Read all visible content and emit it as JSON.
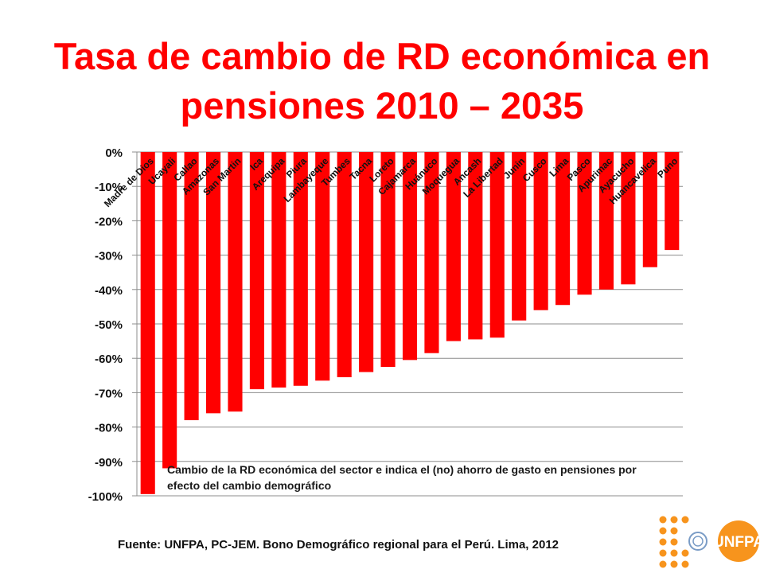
{
  "title_line1": "Tasa de cambio de RD económica en",
  "title_line2": "pensiones 2010 – 2035",
  "note": "Cambio de la RD económica del sector e indica el (no) ahorro de gasto en pensiones por efecto del cambio demográfico",
  "source": "Fuente: UNFPA, PC-JEM.  Bono Demográfico regional para el Perú. Lima, 2012",
  "logo_text": "UNFPA",
  "colors": {
    "bar": "#ff0000",
    "title": "#ff0000",
    "logo_orange": "#f7941d",
    "logo_globe": "#7a9cc6"
  },
  "chart_data": {
    "type": "bar",
    "categories": [
      "Madre de Dios",
      "Ucayali",
      "Callao",
      "Amazonas",
      "San Martin",
      "Ica",
      "Arequipa",
      "Piura",
      "Lambayeque",
      "Tumbes",
      "Tacna",
      "Loreto",
      "Cajamarca",
      "Huánuco",
      "Moquegua",
      "Ancash",
      "La Libertad",
      "Junin",
      "Cusco",
      "Lima",
      "Pasco",
      "Apurimac",
      "Ayacucho",
      "Huancavelica",
      "Puno"
    ],
    "values": [
      -99.5,
      -92,
      -78,
      -76,
      -75.5,
      -69,
      -68.5,
      -68,
      -66.5,
      -65.5,
      -64,
      -62.5,
      -60.5,
      -58.5,
      -55,
      -54.5,
      -54,
      -49,
      -46,
      -44.5,
      -41.5,
      -40,
      -38.5,
      -33.5,
      -28.5
    ],
    "ylim": [
      -100,
      0
    ],
    "yticks": [
      0,
      -10,
      -20,
      -30,
      -40,
      -50,
      -60,
      -70,
      -80,
      -90,
      -100
    ],
    "ytick_labels": [
      "0%",
      "-10%",
      "-20%",
      "-30%",
      "-40%",
      "-50%",
      "-60%",
      "-70%",
      "-80%",
      "-90%",
      "-100%"
    ],
    "grid": true,
    "xlabel": "",
    "ylabel": ""
  }
}
